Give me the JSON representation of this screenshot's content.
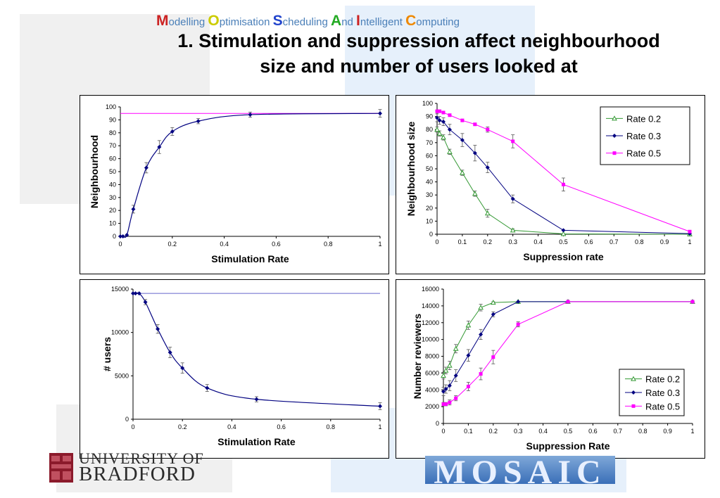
{
  "colors": {
    "green": "#339933",
    "navy": "#000080",
    "magenta": "#ff00ff",
    "refline_magenta": "#ff00ff",
    "refline_blue": "#6666cc",
    "errorbar": "#555555",
    "panel_border": "#000000",
    "banner": "#4a7fb8",
    "bg_block": "#f0f0f0",
    "bg_blue": "#e6f0fb"
  },
  "banner": {
    "words": [
      {
        "cap": "M",
        "rest": "odelling ",
        "color": "#cc2222"
      },
      {
        "cap": "O",
        "rest": "ptimisation ",
        "color": "#cccc00"
      },
      {
        "cap": "S",
        "rest": "cheduling ",
        "color": "#2244cc"
      },
      {
        "cap": "A",
        "rest": "nd ",
        "color": "#22aa22"
      },
      {
        "cap": "I",
        "rest": "ntelligent ",
        "color": "#cc2222"
      },
      {
        "cap": "C",
        "rest": "omputing",
        "color": "#ee8800"
      }
    ]
  },
  "title": {
    "line1": "1. Stimulation and suppression affect neighbourhood",
    "line2": "size and number of users looked at"
  },
  "logos": {
    "bradford_line1": "UNIVERSITY OF",
    "bradford_line2": "BRADFORD",
    "mosaic": "MOSAIC"
  },
  "chart_data": [
    {
      "id": "chart1",
      "type": "line",
      "xlabel": "Stimulation Rate",
      "ylabel": "Neighbourhood",
      "xlim": [
        0,
        1
      ],
      "ylim": [
        0,
        100
      ],
      "xticks": [
        0,
        0.2,
        0.4,
        0.6,
        0.8,
        1
      ],
      "yticks": [
        0,
        10,
        20,
        30,
        40,
        50,
        60,
        70,
        80,
        90,
        100
      ],
      "legend": null,
      "reference_lines": [
        {
          "y": 95,
          "color": "#ff00ff"
        }
      ],
      "series": [
        {
          "color": "#000080",
          "marker": "diamond",
          "x": [
            0,
            0.01,
            0.025,
            0.05,
            0.1,
            0.15,
            0.2,
            0.3,
            0.5,
            1
          ],
          "y": [
            0,
            0,
            1,
            21,
            53,
            69,
            81,
            89,
            94,
            95
          ],
          "err": [
            0,
            0,
            0,
            3,
            4,
            5,
            3,
            2,
            2,
            3
          ]
        }
      ]
    },
    {
      "id": "chart2",
      "type": "line",
      "xlabel": "Suppression rate",
      "ylabel": "Neighbourhood size",
      "xlim": [
        0,
        1
      ],
      "ylim": [
        0,
        100
      ],
      "xticks": [
        0,
        0.1,
        0.2,
        0.3,
        0.4,
        0.5,
        0.6,
        0.7,
        0.8,
        0.9,
        1
      ],
      "yticks": [
        0,
        10,
        20,
        30,
        40,
        50,
        60,
        70,
        80,
        90,
        100
      ],
      "legend": "top-right",
      "series": [
        {
          "name": "Rate 0.2",
          "color": "#339933",
          "marker": "triangle",
          "x": [
            0,
            0.01,
            0.025,
            0.05,
            0.1,
            0.15,
            0.2,
            0.3,
            0.5,
            1
          ],
          "y": [
            80,
            77,
            74,
            63,
            47,
            31,
            16,
            3,
            0.3,
            0
          ],
          "err": [
            2,
            2,
            2,
            2,
            2,
            2,
            3,
            1,
            0,
            0
          ]
        },
        {
          "name": "Rate 0.3",
          "color": "#000080",
          "marker": "diamond",
          "x": [
            0,
            0.01,
            0.025,
            0.05,
            0.1,
            0.15,
            0.2,
            0.3,
            0.5,
            1
          ],
          "y": [
            89,
            87,
            86,
            80,
            72,
            62,
            51,
            27,
            3,
            0.5
          ],
          "err": [
            3,
            3,
            3,
            4,
            5,
            6,
            4,
            3,
            0,
            0
          ]
        },
        {
          "name": "Rate 0.5",
          "color": "#ff00ff",
          "marker": "square",
          "x": [
            0,
            0.01,
            0.025,
            0.05,
            0.1,
            0.15,
            0.2,
            0.3,
            0.5,
            1
          ],
          "y": [
            94,
            94,
            93,
            91,
            87,
            84,
            80,
            71,
            38,
            2
          ],
          "err": [
            1,
            1,
            1,
            1,
            1,
            1,
            2,
            5,
            5,
            0
          ]
        }
      ]
    },
    {
      "id": "chart3",
      "type": "line",
      "xlabel": "Stimulation Rate",
      "ylabel": "# users",
      "xlim": [
        0,
        1
      ],
      "ylim": [
        0,
        15000
      ],
      "xticks": [
        0,
        0.2,
        0.4,
        0.6,
        0.8,
        1
      ],
      "yticks": [
        0,
        5000,
        10000,
        15000
      ],
      "legend": null,
      "reference_lines": [
        {
          "y": 14500,
          "color": "#6666cc"
        }
      ],
      "series": [
        {
          "color": "#000080",
          "marker": "diamond",
          "x": [
            0,
            0.01,
            0.025,
            0.05,
            0.1,
            0.15,
            0.2,
            0.3,
            0.5,
            1
          ],
          "y": [
            14500,
            14500,
            14500,
            13500,
            10400,
            7700,
            5900,
            3600,
            2300,
            1500
          ],
          "err": [
            0,
            0,
            0,
            300,
            500,
            600,
            600,
            400,
            300,
            400
          ]
        }
      ]
    },
    {
      "id": "chart4",
      "type": "line",
      "xlabel": "Suppression Rate",
      "ylabel": "Number reviewers",
      "xlim": [
        0,
        1
      ],
      "ylim": [
        0,
        16000
      ],
      "xticks": [
        0,
        0.1,
        0.2,
        0.3,
        0.4,
        0.5,
        0.6,
        0.7,
        0.8,
        0.9,
        1
      ],
      "yticks": [
        0,
        2000,
        4000,
        6000,
        8000,
        10000,
        12000,
        14000,
        16000
      ],
      "legend": "bottom-right",
      "series": [
        {
          "name": "Rate 0.2",
          "color": "#339933",
          "marker": "triangle",
          "x": [
            0,
            0.01,
            0.025,
            0.05,
            0.1,
            0.15,
            0.2,
            0.3,
            0.5,
            1
          ],
          "y": [
            5700,
            6300,
            6900,
            8900,
            11700,
            13800,
            14400,
            14500,
            14500,
            14500
          ],
          "err": [
            400,
            400,
            500,
            500,
            500,
            400,
            100,
            0,
            0,
            0
          ]
        },
        {
          "name": "Rate 0.3",
          "color": "#000080",
          "marker": "diamond",
          "x": [
            0,
            0.01,
            0.025,
            0.05,
            0.1,
            0.15,
            0.2,
            0.3,
            0.5,
            1
          ],
          "y": [
            3800,
            4100,
            4500,
            5700,
            8100,
            10600,
            13000,
            14500,
            14500,
            14500
          ],
          "err": [
            500,
            500,
            600,
            700,
            700,
            600,
            300,
            0,
            0,
            0
          ]
        },
        {
          "name": "Rate 0.5",
          "color": "#ff00ff",
          "marker": "square",
          "x": [
            0,
            0.01,
            0.025,
            0.05,
            0.1,
            0.15,
            0.2,
            0.3,
            0.5,
            1
          ],
          "y": [
            2300,
            2300,
            2500,
            3000,
            4400,
            5900,
            7900,
            11800,
            14500,
            14500
          ],
          "err": [
            200,
            200,
            300,
            300,
            500,
            700,
            800,
            300,
            0,
            0
          ]
        }
      ]
    }
  ]
}
